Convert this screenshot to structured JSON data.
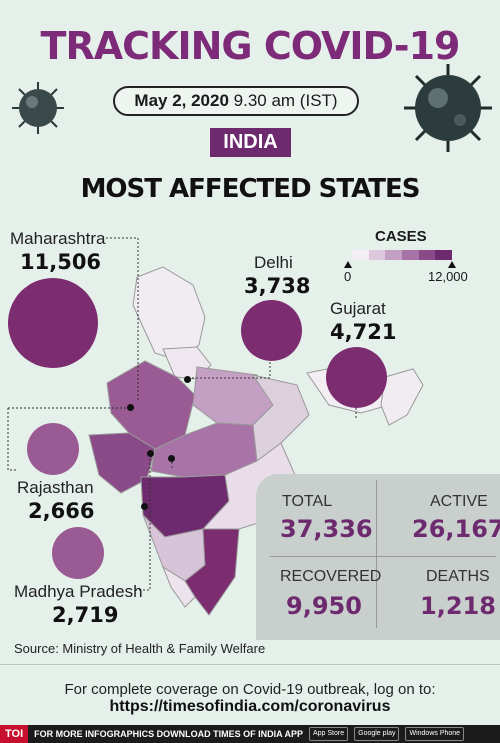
{
  "header": {
    "title": "TRACKING COVID-19",
    "date": "May 2, 2020",
    "time": "9.30 am (IST)",
    "country": "INDIA",
    "subtitle": "MOST AFFECTED STATES"
  },
  "states": [
    {
      "name": "Maharashtra",
      "cases": "11,506"
    },
    {
      "name": "Delhi",
      "cases": "3,738"
    },
    {
      "name": "Gujarat",
      "cases": "4,721"
    },
    {
      "name": "Rajasthan",
      "cases": "2,666"
    },
    {
      "name": "Madhya Pradesh",
      "cases": "2,719"
    }
  ],
  "legend": {
    "title": "CASES",
    "min": "0",
    "max": "12,000",
    "colors": [
      "#f3eef3",
      "#dcc7dc",
      "#c49fc4",
      "#a874a7",
      "#8a4a88",
      "#6e2a6e"
    ]
  },
  "stats": {
    "total_label": "TOTAL",
    "total": "37,336",
    "active_label": "ACTIVE",
    "active": "26,167",
    "recovered_label": "RECOVERED",
    "recovered": "9,950",
    "deaths_label": "DEATHS",
    "deaths": "1,218"
  },
  "source": "Source: Ministry of Health & Family Welfare",
  "footer": {
    "line": "For complete coverage on Covid-19 outbreak, log on to:",
    "url": "https://timesofindia.com/coronavirus",
    "brand": "TOI",
    "strip_text": "FOR MORE INFOGRAPHICS DOWNLOAD TIMES OF INDIA APP",
    "badges": [
      "App Store",
      "Google play",
      "Windows Phone"
    ]
  },
  "colors": {
    "accent": "#7d2a78",
    "bubble": "#7b2d6f",
    "bubble_light": "#9a5a93",
    "background": "#e6f0ea"
  }
}
